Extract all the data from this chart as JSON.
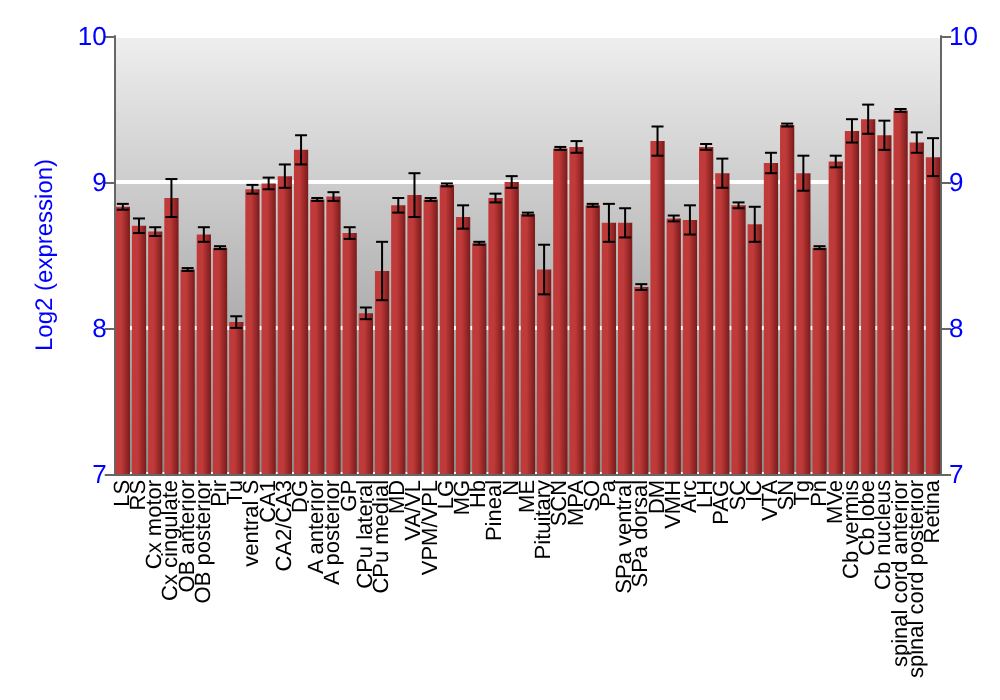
{
  "chart_data": {
    "type": "bar",
    "ylabel": "Log2 (expression)",
    "categories": [
      "LS",
      "RS",
      "Cx motor",
      "Cx cingulate",
      "OB anterior",
      "OB posterior",
      "Pir",
      "Tu",
      "ventral S",
      "CA1",
      "CA2/CA3",
      "DG",
      "A anterior",
      "A posterior",
      "GP",
      "CPu lateral",
      "CPu medial",
      "MD",
      "VA/VL",
      "VPM/VPL",
      "LG",
      "MG",
      "Hb",
      "Pineal",
      "N",
      "ME",
      "Pituitary",
      "SCN",
      "MPA",
      "SO",
      "Pa",
      "SPa ventral",
      "SPa dorsal",
      "DM",
      "VMH",
      "Arc",
      "LH",
      "PAG",
      "SC",
      "IC",
      "VTA",
      "SN",
      "Tg",
      "Pn",
      "MVe",
      "Cb vermis",
      "Cb lobe",
      "Cb nucleus",
      "spinal cord anterior",
      "spinal cord posterior",
      "Retina"
    ],
    "values": [
      8.83,
      8.7,
      8.66,
      8.89,
      8.4,
      8.64,
      8.55,
      8.04,
      8.95,
      8.99,
      9.04,
      9.22,
      8.88,
      8.9,
      8.65,
      8.1,
      8.39,
      8.84,
      8.91,
      8.88,
      8.98,
      8.76,
      8.58,
      8.89,
      9.0,
      8.78,
      8.4,
      9.23,
      9.24,
      8.84,
      8.72,
      8.72,
      8.28,
      9.28,
      8.75,
      8.74,
      9.24,
      9.06,
      8.84,
      8.71,
      9.13,
      9.39,
      9.06,
      8.55,
      9.14,
      9.35,
      9.43,
      9.32,
      9.49,
      9.27,
      9.17
    ],
    "errors": [
      0.02,
      0.05,
      0.03,
      0.13,
      0.01,
      0.05,
      0.01,
      0.04,
      0.03,
      0.04,
      0.08,
      0.1,
      0.01,
      0.03,
      0.04,
      0.04,
      0.2,
      0.05,
      0.15,
      0.01,
      0.01,
      0.08,
      0.01,
      0.03,
      0.04,
      0.01,
      0.17,
      0.01,
      0.04,
      0.01,
      0.13,
      0.1,
      0.02,
      0.1,
      0.02,
      0.1,
      0.02,
      0.1,
      0.02,
      0.12,
      0.07,
      0.01,
      0.12,
      0.01,
      0.04,
      0.08,
      0.1,
      0.1,
      0.01,
      0.07,
      0.13
    ],
    "color": "#c03a3a",
    "ylim": [
      7,
      10
    ],
    "yticks": [
      7,
      8,
      9,
      10
    ],
    "y2lim": [
      7,
      10
    ],
    "y2ticks": [
      7,
      8,
      9,
      10
    ],
    "grid": "y"
  }
}
